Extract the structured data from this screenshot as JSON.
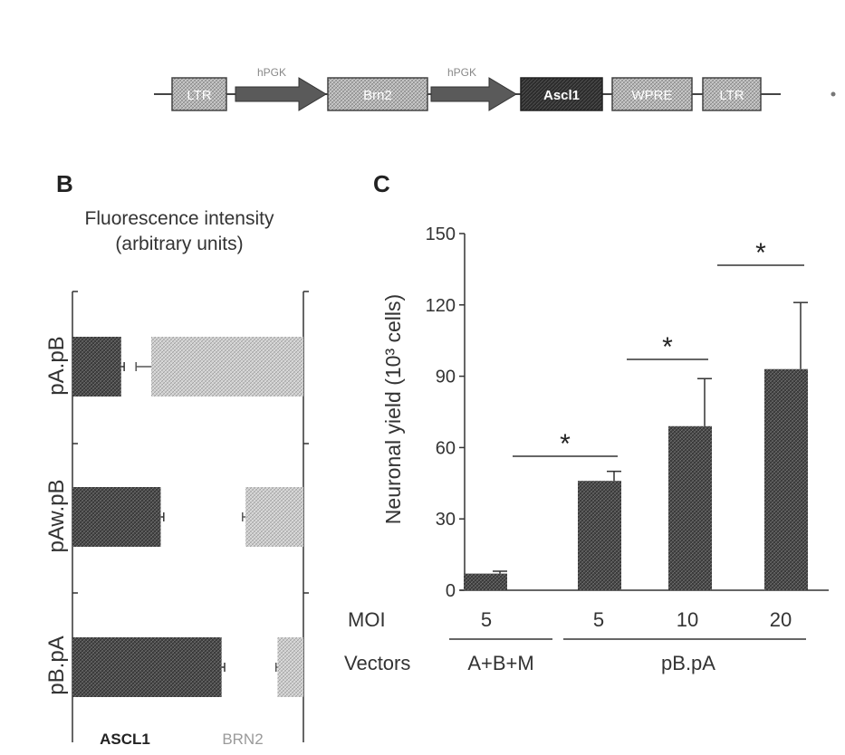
{
  "colors": {
    "dark_bar": "#4a4a4a",
    "light_bar": "#c8c8c8",
    "axis": "#333333",
    "text": "#222222",
    "module_dark": "#2f2f2f",
    "module_light": "#b4b4b4",
    "arrow": "#555555"
  },
  "panel_a": {
    "modules": [
      "LTR",
      "hPGK",
      "Brn2",
      "hPGK",
      "Ascl1",
      "WPRE",
      "LTR"
    ]
  },
  "panel_b": {
    "letter": "B",
    "title_line1": "Fluorescence intensity",
    "title_line2": "(arbitrary units)",
    "legend_ascl1": "ASCL1",
    "legend_brn2": "BRN2"
  },
  "panel_c": {
    "letter": "C",
    "sig_marker": "*",
    "moi_label": "MOI",
    "vectors_label": "Vectors",
    "vector_group_1": "A+B+M",
    "vector_group_2": "pB.pA"
  },
  "chart_data": [
    {
      "type": "bar",
      "title": "Fluorescence intensity (arbitrary units)",
      "orientation": "horizontal",
      "categories": [
        "pA.pB",
        "pAw.pB",
        "pB.pA"
      ],
      "series": [
        {
          "name": "ASCL1",
          "values": [
            0.32,
            0.58,
            0.98
          ],
          "errors": [
            0.02,
            0.02,
            0.02
          ]
        },
        {
          "name": "BRN2",
          "values": [
            1.0,
            0.38,
            0.17
          ],
          "errors": [
            0.1,
            0.02,
            0.01
          ]
        }
      ],
      "bar_layout": "back-to-back",
      "legend": [
        "ASCL1",
        "BRN2"
      ],
      "grid": false
    },
    {
      "type": "bar",
      "ylabel": "Neuronal yield (10³ cells)",
      "ylim": [
        0,
        150
      ],
      "yticks": [
        0,
        30,
        60,
        90,
        120,
        150
      ],
      "categories": [
        "5",
        "5",
        "10",
        "20"
      ],
      "values": [
        7,
        46,
        69,
        93
      ],
      "errors": [
        1,
        4,
        20,
        28
      ],
      "xlabel_rows": {
        "MOI": [
          "5",
          "5",
          "10",
          "20"
        ],
        "Vectors": [
          "A+B+M",
          "pB.pA"
        ]
      },
      "significance": [
        {
          "between": [
            0,
            1
          ],
          "label": "*"
        },
        {
          "between": [
            1,
            2
          ],
          "label": "*"
        },
        {
          "between": [
            2,
            3
          ],
          "label": "*"
        }
      ],
      "grid": false
    }
  ]
}
